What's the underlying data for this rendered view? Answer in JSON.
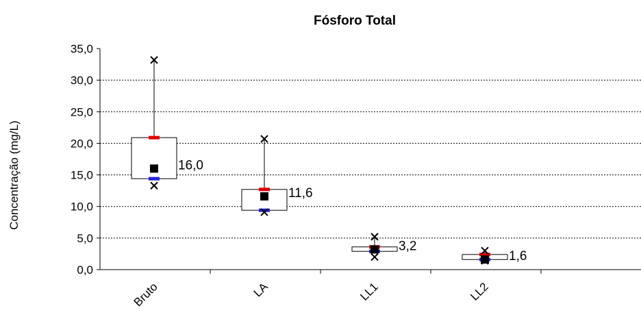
{
  "chart_data": {
    "type": "boxplot",
    "title": "Fósforo Total",
    "ylabel": "Concentração (mg/L)",
    "xlabel": "",
    "ylim": [
      0,
      35
    ],
    "ytick_step": 5,
    "ytick_labels": [
      "0,0",
      "5,0",
      "10,0",
      "15,0",
      "20,0",
      "25,0",
      "30,0",
      "35,0"
    ],
    "grid": true,
    "categories": [
      "Bruto",
      "LA",
      "LL1",
      "LL2"
    ],
    "boxes": [
      {
        "category": "Bruto",
        "min": 13.3,
        "q1": 14.4,
        "median": 16.0,
        "q3": 20.9,
        "max": 33.2,
        "label": "16,0"
      },
      {
        "category": "LA",
        "min": 9.1,
        "q1": 9.4,
        "median": 11.6,
        "q3": 12.7,
        "max": 20.7,
        "label": "11,6"
      },
      {
        "category": "LL1",
        "min": 2.0,
        "q1": 2.9,
        "median": 3.2,
        "q3": 3.6,
        "max": 5.2,
        "label": "3,2"
      },
      {
        "category": "LL2",
        "min": 1.4,
        "q1": 1.6,
        "median": 1.6,
        "q3": 2.4,
        "max": 3.0,
        "label": "1,6"
      }
    ],
    "colors": {
      "q3_marker": "#e00000",
      "q1_marker": "#2222dd",
      "median_marker": "#000000",
      "extreme_marker": "#000000",
      "grid": "#000000",
      "box_fill": "#ffffff"
    }
  }
}
